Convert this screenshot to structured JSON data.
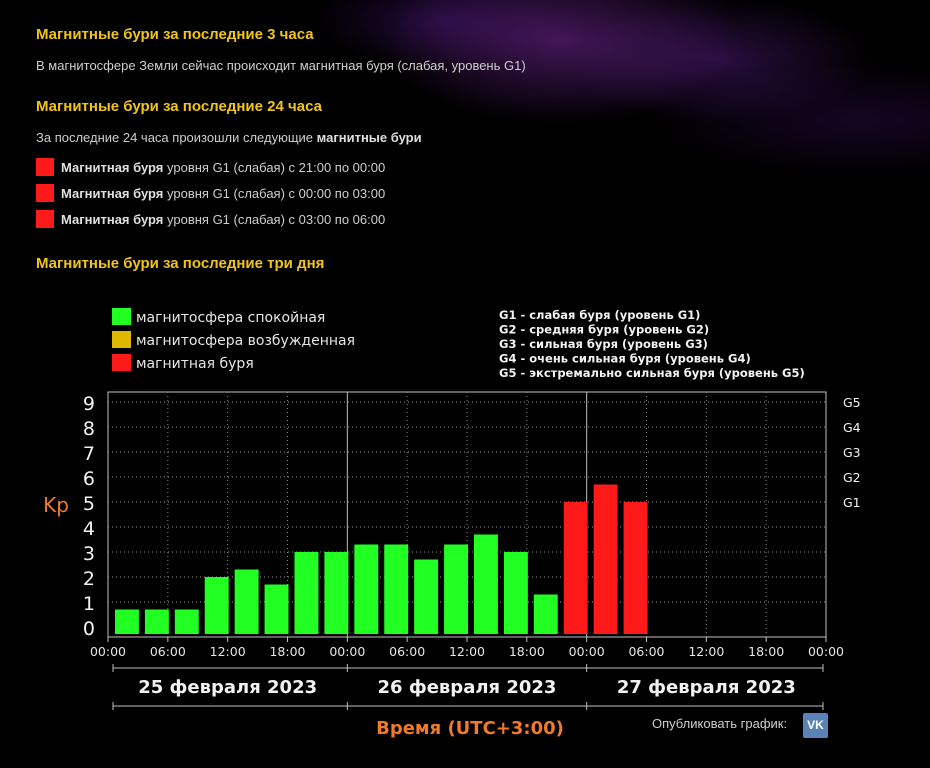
{
  "section1": {
    "title": "Магнитные бури за последние 3 часа",
    "text": "В магнитосфере Земли сейчас происходит магнитная буря (слабая, уровень G1)"
  },
  "section2": {
    "title": "Магнитные бури за последние 24 часа",
    "intro_plain": "За последние 24 часа произошли следующие ",
    "intro_bold": "магнитные бури",
    "events": [
      {
        "bold": "Магнитная буря",
        "text": " уровня G1 (слабая) с 21:00 по 00:00"
      },
      {
        "bold": "Магнитная буря",
        "text": " уровня G1 (слабая) с 00:00 по 03:00"
      },
      {
        "bold": "Магнитная буря",
        "text": " уровня G1 (слабая) с 03:00 по 06:00"
      }
    ]
  },
  "section3": {
    "title": "Магнитные бури за последние три дня"
  },
  "colors": {
    "calm": "#22ff22",
    "excited": "#e0b800",
    "storm": "#ff1a1a",
    "accent": "#f0c419",
    "axis_label": "#f07a2a"
  },
  "chart_data": {
    "type": "bar",
    "ylabel": "Kp",
    "xlabel": "Время (UTC+3:00)",
    "ylim": [
      0,
      9
    ],
    "yticks": [
      0,
      1,
      2,
      3,
      4,
      5,
      6,
      7,
      8,
      9
    ],
    "x_tick_labels": [
      "00:00",
      "06:00",
      "12:00",
      "18:00",
      "00:00",
      "06:00",
      "12:00",
      "18:00",
      "00:00",
      "06:00",
      "12:00",
      "18:00",
      "00:00"
    ],
    "days": [
      "25 февраля 2023",
      "26 февраля 2023",
      "27 февраля 2023"
    ],
    "g_levels": [
      {
        "label": "G5",
        "kp": 9
      },
      {
        "label": "G4",
        "kp": 8
      },
      {
        "label": "G3",
        "kp": 7
      },
      {
        "label": "G2",
        "kp": 6
      },
      {
        "label": "G1",
        "kp": 5
      }
    ],
    "legend": [
      {
        "label": "магнитосфера спокойная",
        "status": "calm"
      },
      {
        "label": "магнитосфера возбужденная",
        "status": "excited"
      },
      {
        "label": "магнитная буря",
        "status": "storm"
      }
    ],
    "g_legend": [
      "G1 - слабая буря (уровень G1)",
      "G2 - средняя буря (уровень G2)",
      "G3 - сильная буря (уровень G3)",
      "G4 - очень сильная буря (уровень G4)",
      "G5 - экстремально сильная буря (уровень G5)"
    ],
    "interval_hours": 3,
    "values": [
      0.7,
      0.7,
      0.7,
      2.0,
      2.3,
      1.7,
      3.0,
      3.0,
      3.3,
      3.3,
      2.7,
      3.3,
      3.7,
      3.0,
      1.3,
      5.0,
      5.7,
      5.0
    ],
    "status": [
      "calm",
      "calm",
      "calm",
      "calm",
      "calm",
      "calm",
      "calm",
      "calm",
      "calm",
      "calm",
      "calm",
      "calm",
      "calm",
      "calm",
      "calm",
      "storm",
      "storm",
      "storm"
    ]
  },
  "publish": {
    "label": "Опубликовать график:",
    "vk_label": "VK"
  }
}
